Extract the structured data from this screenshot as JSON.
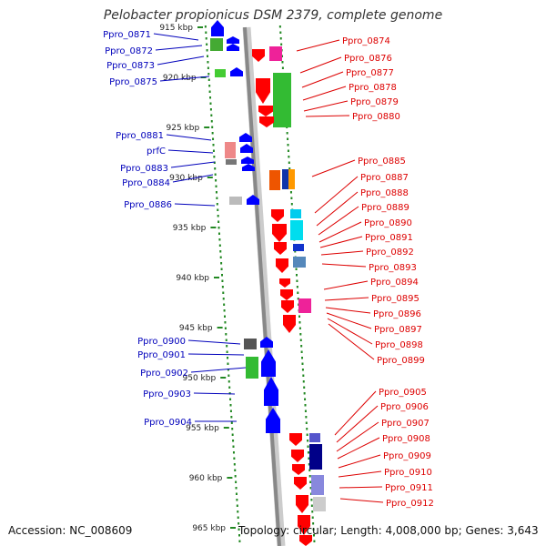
{
  "header": {
    "title": "Pelobacter propionicus DSM 2379, complete genome"
  },
  "footer": {
    "accession": "Accession: NC_008609",
    "summary": "Topology: circular; Length: 4,008,000 bp; Genes: 3,643"
  },
  "colors": {
    "strand_left": "#0000ff",
    "strand_right": "#ff0000",
    "label_left": "#0000bb",
    "label_right": "#dd0000",
    "ticks": "#228822"
  },
  "chart_data": {
    "type": "genome-map",
    "scale_labels": [
      "915 kbp",
      "920 kbp",
      "925 kbp",
      "930 kbp",
      "935 kbp",
      "940 kbp",
      "945 kbp",
      "950 kbp",
      "955 kbp",
      "960 kbp",
      "965 kbp"
    ],
    "left_genes": [
      "Ppro_0871",
      "Ppro_0872",
      "Ppro_0873",
      "Ppro_0875",
      "Ppro_0881",
      "prfC",
      "Ppro_0883",
      "Ppro_0884",
      "Ppro_0886",
      "Ppro_0900",
      "Ppro_0901",
      "Ppro_0902",
      "Ppro_0903",
      "Ppro_0904"
    ],
    "right_genes": [
      "Ppro_0874",
      "Ppro_0876",
      "Ppro_0877",
      "Ppro_0878",
      "Ppro_0879",
      "Ppro_0880",
      "Ppro_0885",
      "Ppro_0887",
      "Ppro_0888",
      "Ppro_0889",
      "Ppro_0890",
      "Ppro_0891",
      "Ppro_0892",
      "Ppro_0893",
      "Ppro_0894",
      "Ppro_0895",
      "Ppro_0896",
      "Ppro_0897",
      "Ppro_0898",
      "Ppro_0899",
      "Ppro_0905",
      "Ppro_0906",
      "Ppro_0907",
      "Ppro_0908",
      "Ppro_0909",
      "Ppro_0910",
      "Ppro_0911",
      "Ppro_0912"
    ]
  }
}
